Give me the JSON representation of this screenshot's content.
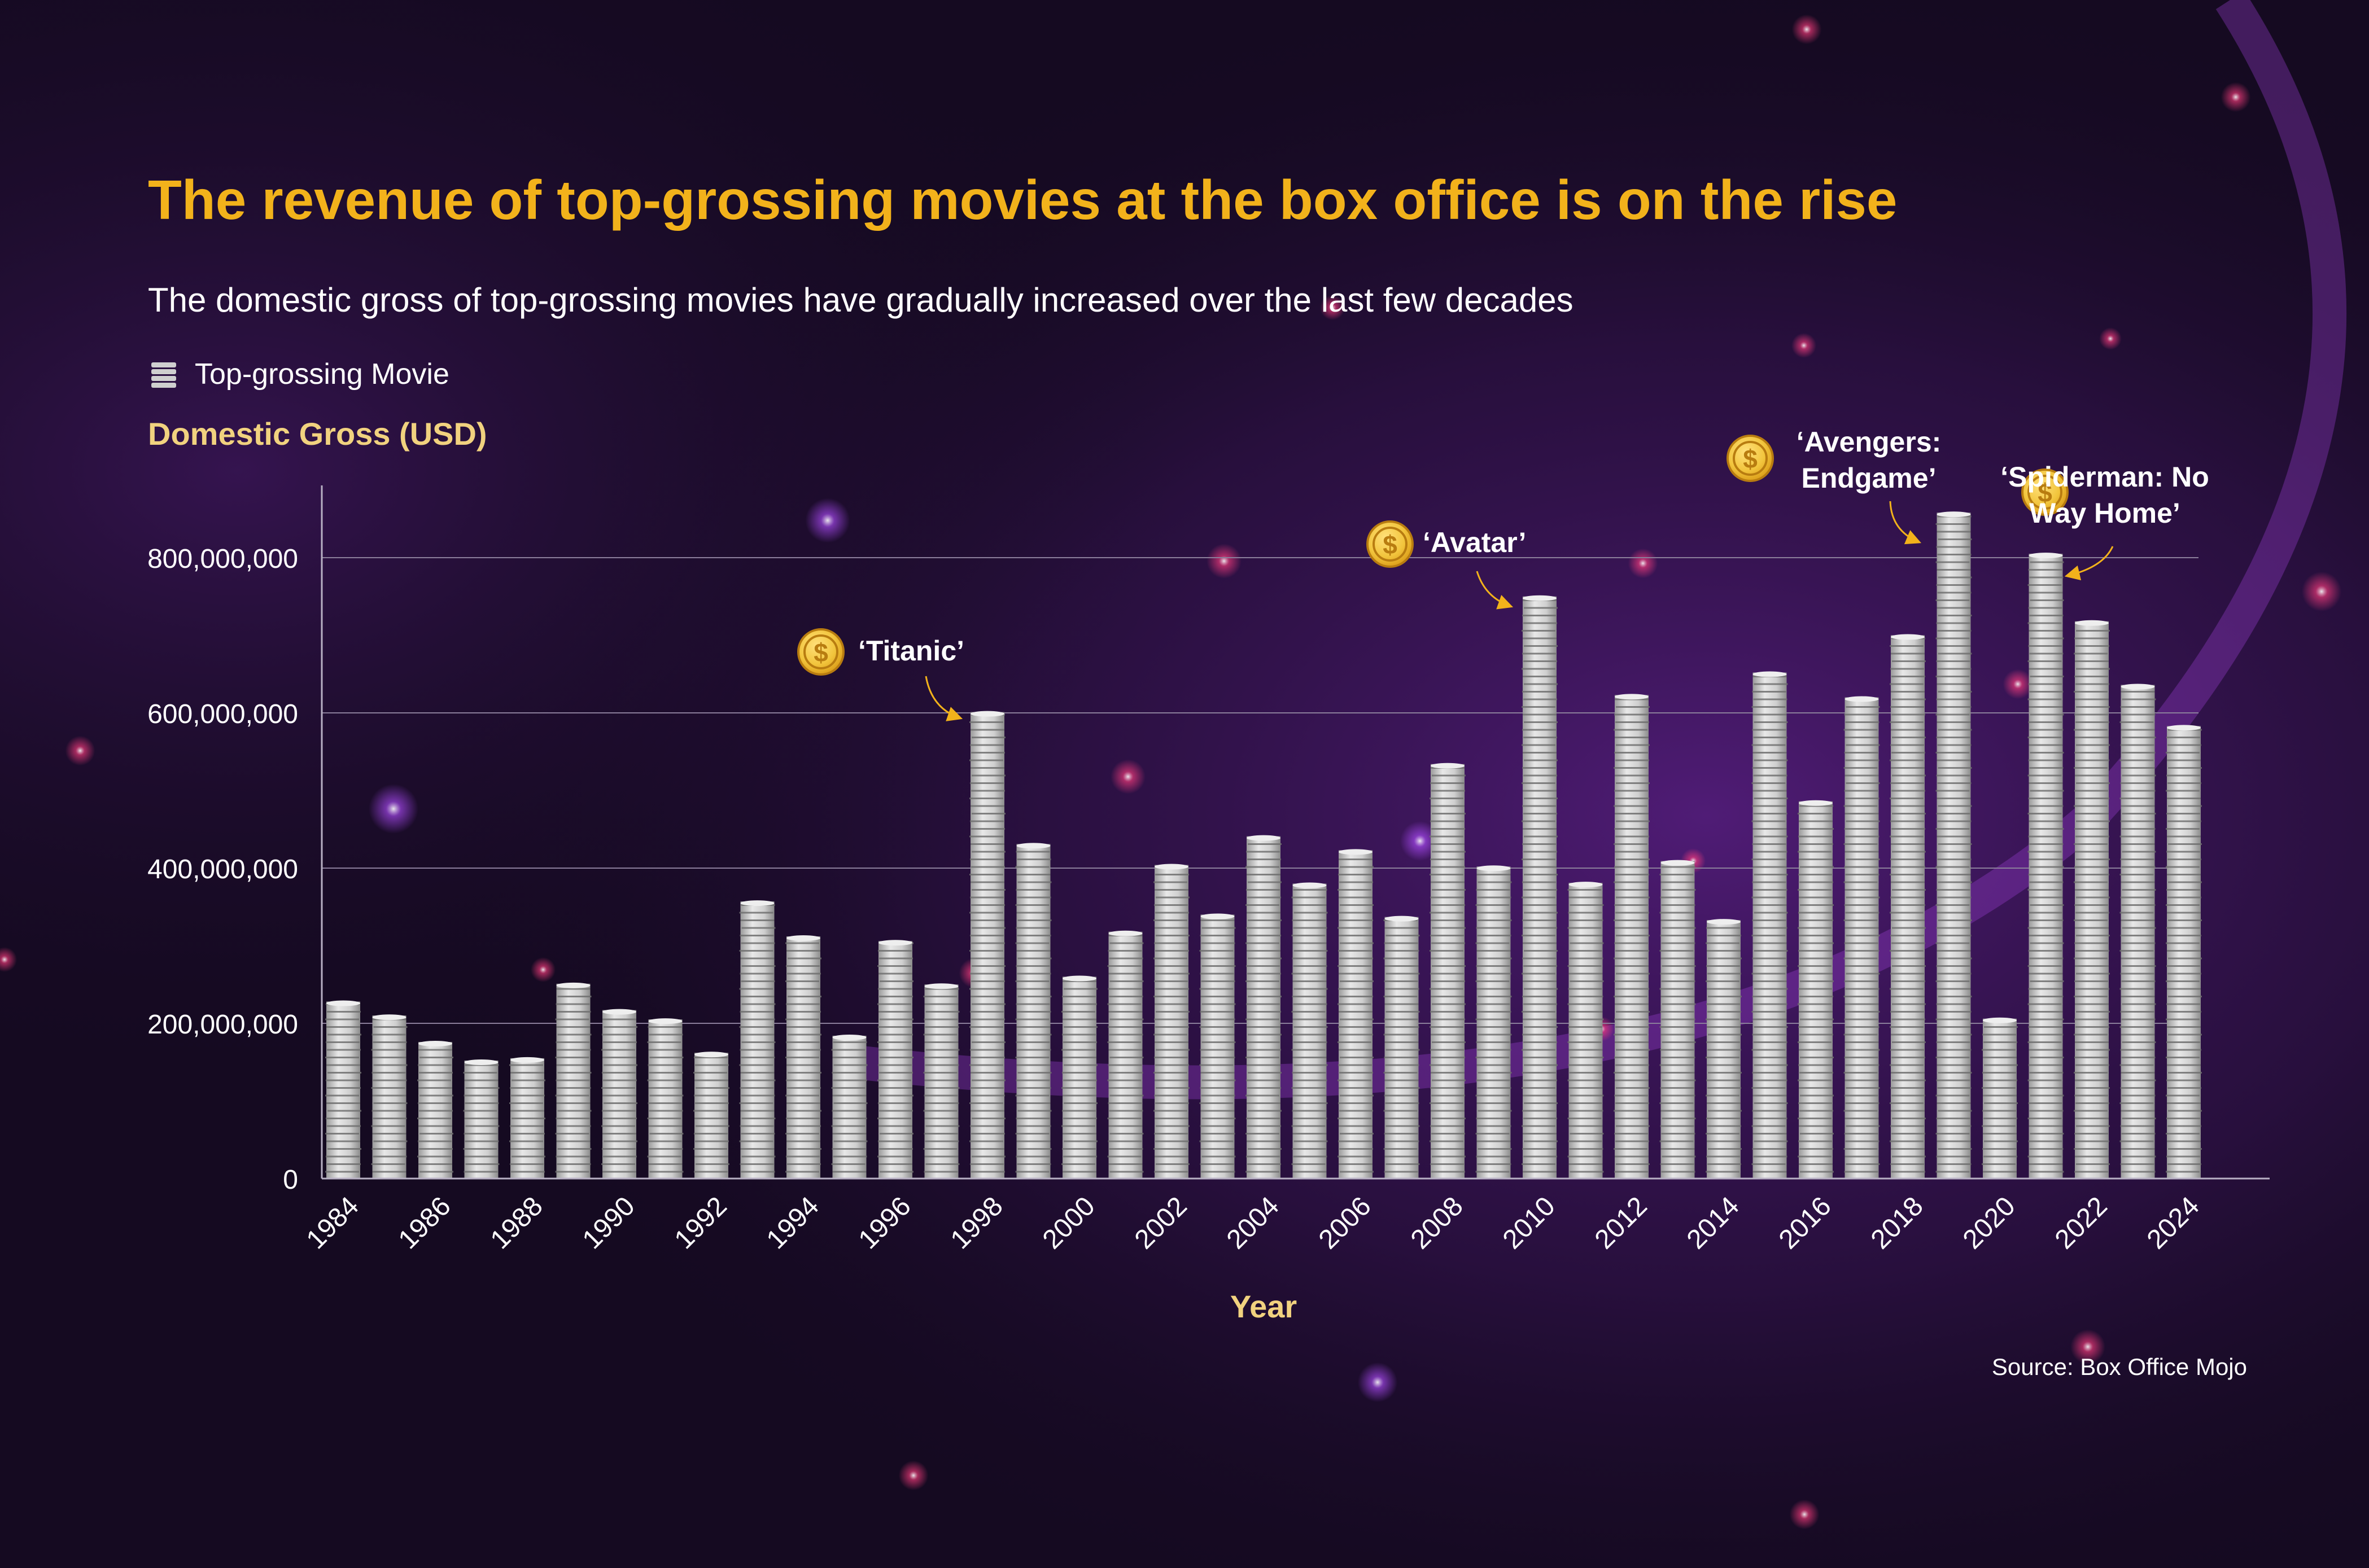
{
  "title": "The revenue of top-grossing movies at the box office is on the rise",
  "subtitle": "The domestic gross of top-grossing movies have gradually increased over the last few decades",
  "legend_label": "Top-grossing Movie",
  "y_axis_title": "Domestic Gross (USD)",
  "x_axis_title": "Year",
  "source": "Source: Box Office Mojo",
  "colors": {
    "title": "#f2b21b",
    "axis_title": "#f1d27f",
    "coin": "#f2c53d",
    "coin_stroke": "#b87c10",
    "stack": "#d2d2d2",
    "stack_dark": "#6e6e6e",
    "gridline": "#8b7e9b",
    "text": "#ffffff"
  },
  "annotations": [
    {
      "year": 1997,
      "label": "‘Titanic’",
      "icon": "dollar-coin-icon"
    },
    {
      "year": 2009,
      "label": "‘Avatar’",
      "icon": "dollar-coin-icon"
    },
    {
      "year": 2019,
      "label": "‘Avengers: Endgame’",
      "lines": [
        "‘Avengers:",
        "Endgame’"
      ],
      "icon": "dollar-coin-icon"
    },
    {
      "year": 2021,
      "label": "‘Spiderman: No Way Home’",
      "lines": [
        "‘Spiderman: No",
        "Way Home’"
      ],
      "icon": "dollar-coin-icon"
    }
  ],
  "chart_data": {
    "type": "bar",
    "title": "The revenue of top-grossing movies at the box office is on the rise",
    "subtitle": "The domestic gross of top-grossing movies have gradually increased over the last few decades",
    "xlabel": "Year",
    "ylabel": "Domestic Gross (USD)",
    "ylim": [
      0,
      900000000
    ],
    "yticks": [
      0,
      200000000,
      400000000,
      600000000,
      800000000
    ],
    "ytick_labels": [
      "0",
      "200,000,000",
      "400,000,000",
      "600,000,000",
      "800,000,000"
    ],
    "xtick_labels": [
      "1984",
      "1986",
      "1988",
      "1990",
      "1992",
      "1994",
      "1996",
      "1998",
      "2000",
      "2002",
      "2004",
      "2006",
      "2008",
      "2010",
      "2012",
      "2014",
      "2016",
      "2018",
      "2020",
      "2022",
      "2024"
    ],
    "grid": true,
    "legend_position": "top-left",
    "categories": [
      "1984",
      "1985",
      "1986",
      "1987",
      "1988",
      "1989",
      "1990",
      "1991",
      "1992",
      "1993",
      "1994",
      "1995",
      "1996",
      "1997",
      "1998",
      "1999",
      "2000",
      "2001",
      "2002",
      "2003",
      "2004",
      "2005",
      "2006",
      "2007",
      "2008",
      "2009",
      "2010",
      "2011",
      "2012",
      "2013",
      "2014",
      "2015",
      "2016",
      "2017",
      "2018",
      "2019",
      "2020",
      "2021",
      "2022",
      "2023",
      "2024"
    ],
    "series": [
      {
        "name": "Top-grossing Movie",
        "values": [
          228000000,
          210000000,
          176000000,
          152000000,
          155000000,
          251000000,
          217000000,
          205000000,
          162000000,
          357000000,
          312000000,
          184000000,
          306000000,
          250000000,
          601000000,
          431000000,
          260000000,
          318000000,
          404000000,
          340000000,
          441000000,
          380000000,
          423000000,
          337000000,
          534000000,
          402000000,
          750000000,
          381000000,
          623000000,
          409000000,
          333000000,
          652000000,
          486000000,
          620000000,
          700000000,
          858000000,
          206000000,
          805000000,
          718000000,
          636000000,
          583000000
        ]
      }
    ]
  }
}
